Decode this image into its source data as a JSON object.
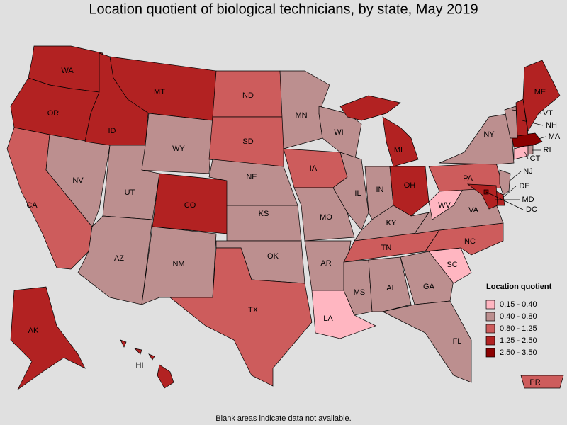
{
  "title": "Location quotient of biological technicians, by state, May 2019",
  "footnote": "Blank areas indicate data not available.",
  "legend": {
    "title": "Location quotient",
    "items": [
      {
        "label": "0.15 - 0.40",
        "color": "#ffb6c1"
      },
      {
        "label": "0.40 - 0.80",
        "color": "#bc8f8f"
      },
      {
        "label": "0.80 - 1.25",
        "color": "#cd5c5c"
      },
      {
        "label": "1.25 - 2.50",
        "color": "#b22222"
      },
      {
        "label": "2.50 - 3.50",
        "color": "#8b0000"
      }
    ]
  },
  "states": [
    {
      "label": "WA",
      "color": "#b22222"
    },
    {
      "label": "OR",
      "color": "#b22222"
    },
    {
      "label": "CA",
      "color": "#cd5c5c"
    },
    {
      "label": "NV",
      "color": "#bc8f8f"
    },
    {
      "label": "ID",
      "color": "#b22222"
    },
    {
      "label": "MT",
      "color": "#b22222"
    },
    {
      "label": "WY",
      "color": "#bc8f8f"
    },
    {
      "label": "UT",
      "color": "#bc8f8f"
    },
    {
      "label": "AZ",
      "color": "#bc8f8f"
    },
    {
      "label": "CO",
      "color": "#b22222"
    },
    {
      "label": "NM",
      "color": "#bc8f8f"
    },
    {
      "label": "ND",
      "color": "#cd5c5c"
    },
    {
      "label": "SD",
      "color": "#cd5c5c"
    },
    {
      "label": "NE",
      "color": "#bc8f8f"
    },
    {
      "label": "KS",
      "color": "#bc8f8f"
    },
    {
      "label": "OK",
      "color": "#bc8f8f"
    },
    {
      "label": "TX",
      "color": "#cd5c5c"
    },
    {
      "label": "MN",
      "color": "#bc8f8f"
    },
    {
      "label": "IA",
      "color": "#cd5c5c"
    },
    {
      "label": "MO",
      "color": "#bc8f8f"
    },
    {
      "label": "AR",
      "color": "#bc8f8f"
    },
    {
      "label": "LA",
      "color": "#ffb6c1"
    },
    {
      "label": "WI",
      "color": "#bc8f8f"
    },
    {
      "label": "IL",
      "color": "#bc8f8f"
    },
    {
      "label": "MI",
      "color": "#b22222"
    },
    {
      "label": "IN",
      "color": "#bc8f8f"
    },
    {
      "label": "OH",
      "color": "#b22222"
    },
    {
      "label": "KY",
      "color": "#bc8f8f"
    },
    {
      "label": "TN",
      "color": "#cd5c5c"
    },
    {
      "label": "MS",
      "color": "#bc8f8f"
    },
    {
      "label": "AL",
      "color": "#bc8f8f"
    },
    {
      "label": "GA",
      "color": "#bc8f8f"
    },
    {
      "label": "FL",
      "color": "#bc8f8f"
    },
    {
      "label": "SC",
      "color": "#ffb6c1"
    },
    {
      "label": "NC",
      "color": "#cd5c5c"
    },
    {
      "label": "VA",
      "color": "#bc8f8f"
    },
    {
      "label": "WV",
      "color": "#ffb6c1"
    },
    {
      "label": "PA",
      "color": "#cd5c5c"
    },
    {
      "label": "NY",
      "color": "#bc8f8f"
    },
    {
      "label": "NJ",
      "color": "#bc8f8f"
    },
    {
      "label": "DE",
      "color": "#b22222"
    },
    {
      "label": "MD",
      "color": "#b22222"
    },
    {
      "label": "DC",
      "color": "#8b0000"
    },
    {
      "label": "CT",
      "color": "#ffb6c1"
    },
    {
      "label": "RI",
      "color": "#bc8f8f"
    },
    {
      "label": "MA",
      "color": "#8b0000"
    },
    {
      "label": "VT",
      "color": "#bc8f8f"
    },
    {
      "label": "NH",
      "color": "#b22222"
    },
    {
      "label": "ME",
      "color": "#b22222"
    },
    {
      "label": "AK",
      "color": "#b22222"
    },
    {
      "label": "HI",
      "color": "#b22222"
    },
    {
      "label": "PR",
      "color": "#cd5c5c"
    }
  ]
}
